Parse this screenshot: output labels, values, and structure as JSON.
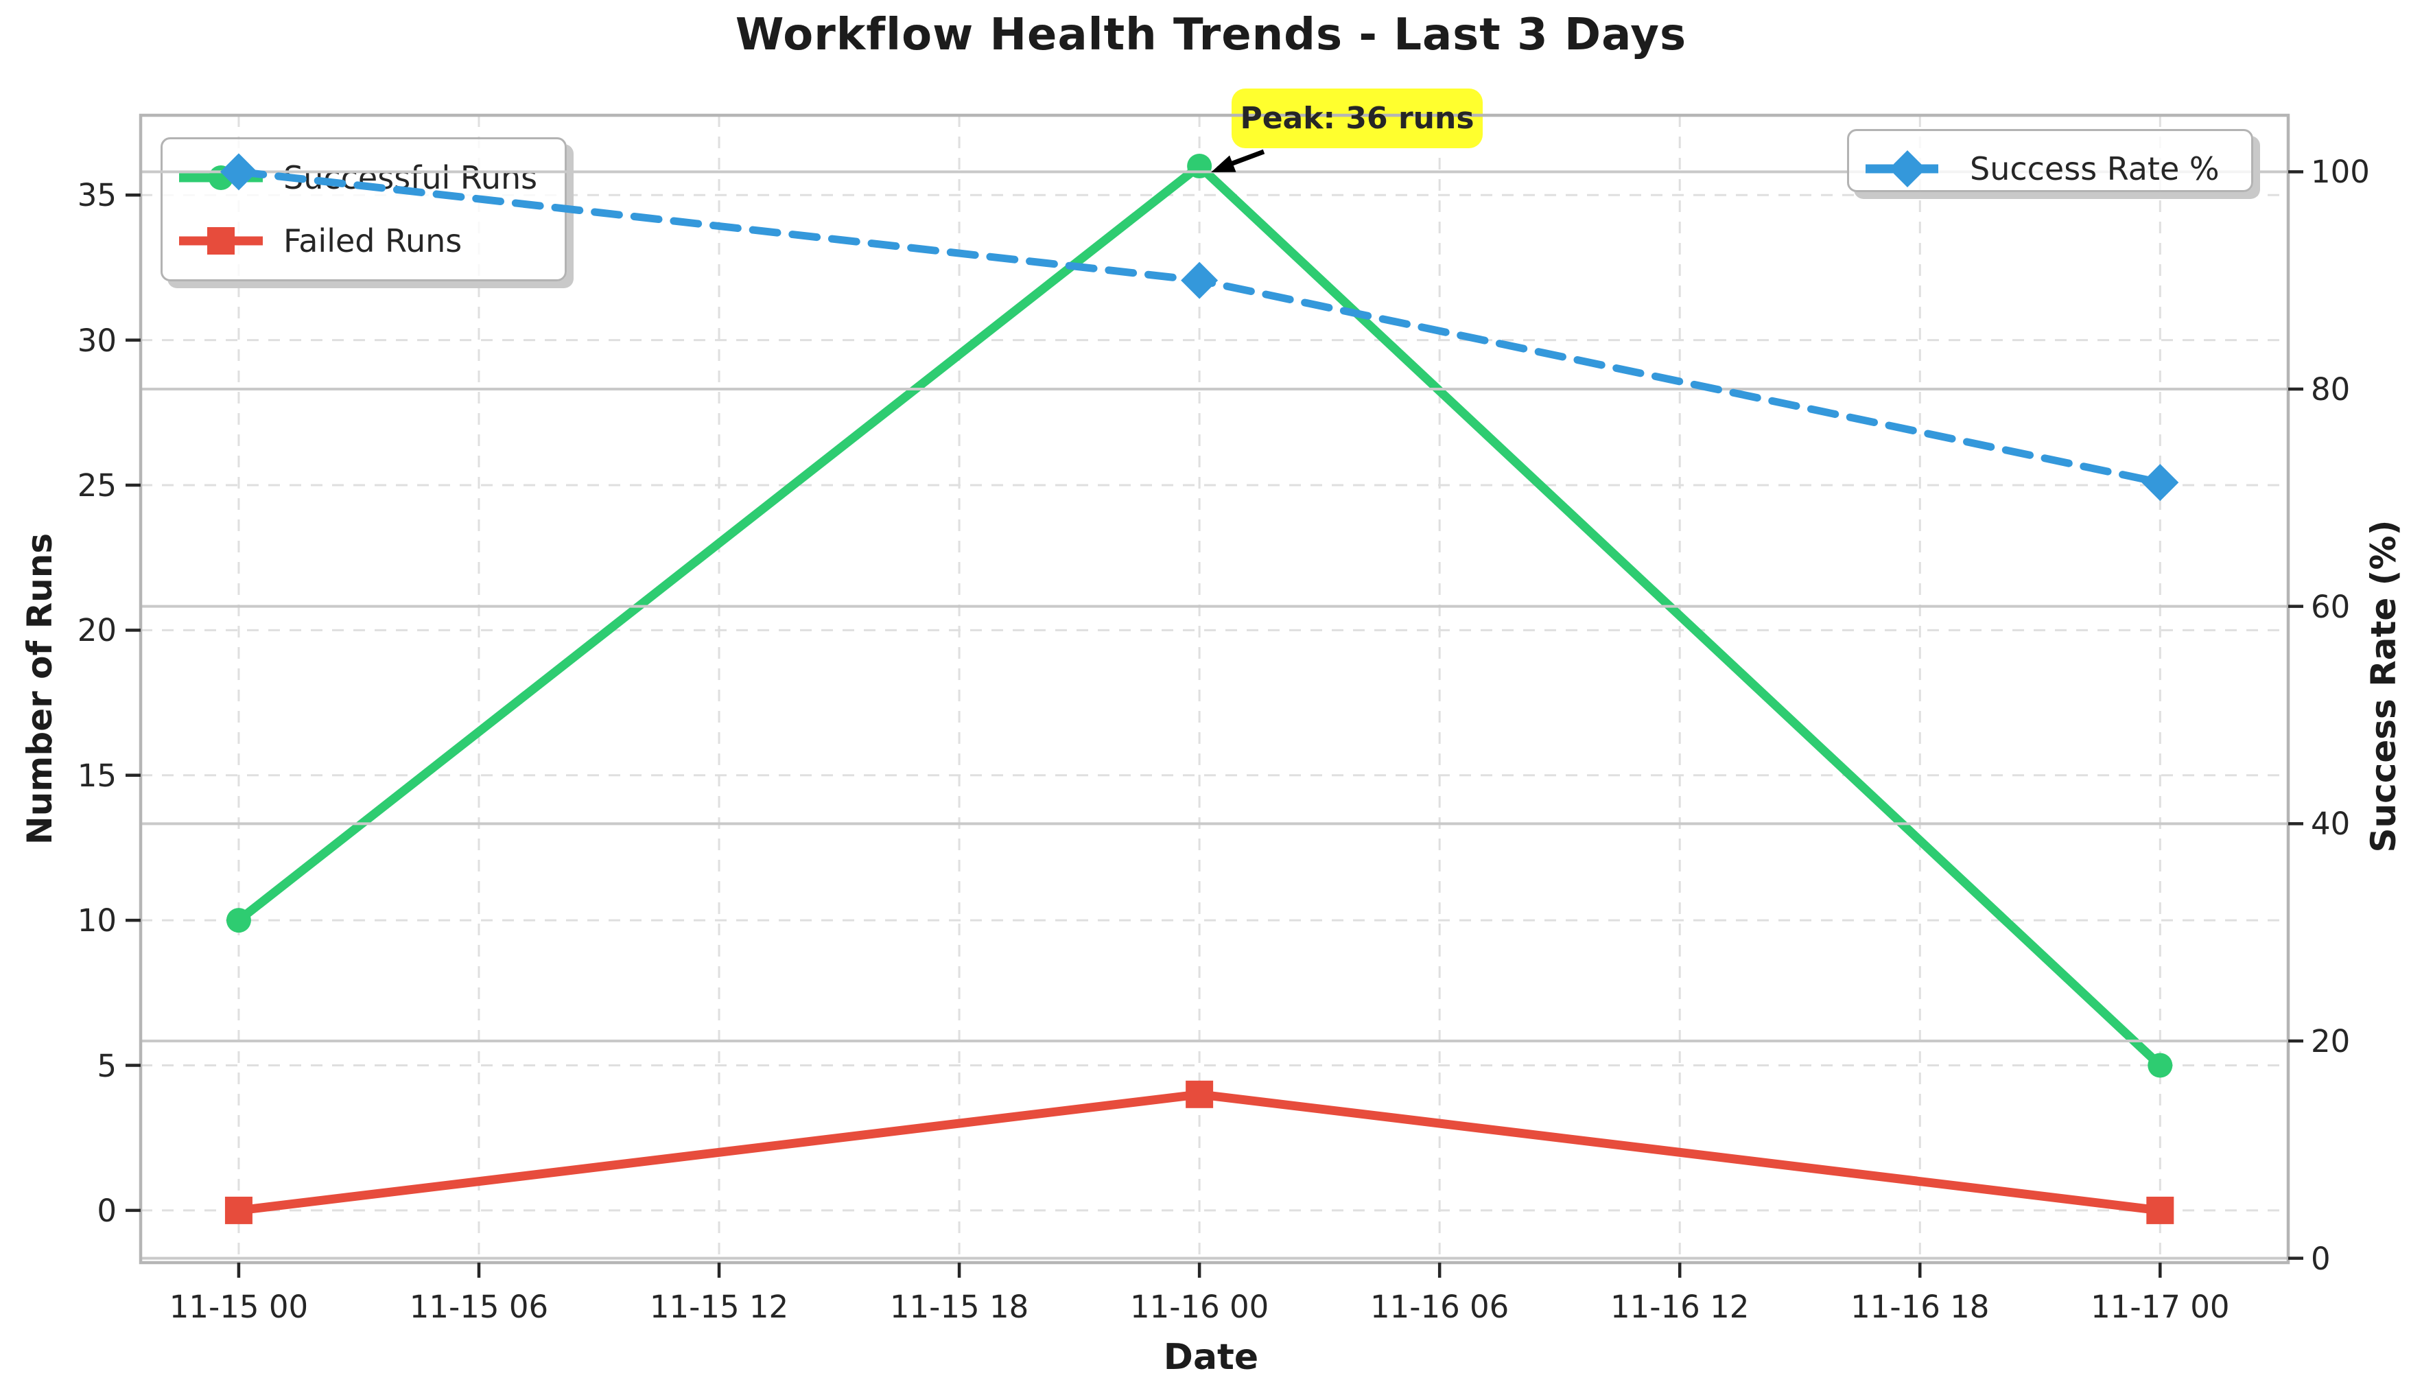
{
  "figure": {
    "title": "Workflow Health Trends - Last 3 Days"
  },
  "chart_data": {
    "type": "line",
    "title": "Workflow Health Trends - Last 3 Days",
    "xlabel": "Date",
    "ylabel_left": "Number of Runs",
    "ylabel_right": "Success Rate (%)",
    "x_tick_labels": [
      "11-15 00",
      "11-15 06",
      "11-15 12",
      "11-15 18",
      "11-16 00",
      "11-16 06",
      "11-16 12",
      "11-16 18",
      "11-17 00"
    ],
    "x_tick_hours": [
      0,
      6,
      12,
      18,
      24,
      30,
      36,
      42,
      48
    ],
    "x_data_hours": [
      0,
      24,
      48
    ],
    "x_data_labels": [
      "11-15 00",
      "11-16 00",
      "11-17 00"
    ],
    "left_axis": {
      "ticks": [
        0,
        5,
        10,
        15,
        20,
        25,
        30,
        35
      ],
      "min": -1.8,
      "max": 37.75
    },
    "right_axis": {
      "ticks": [
        0,
        20,
        40,
        60,
        80,
        100
      ],
      "min": -0.4,
      "max": 105.2
    },
    "xlim_hours": [
      -2.45,
      51.2
    ],
    "grid": {
      "dashed_on": true,
      "solid_on": true
    },
    "legend_positions": {
      "runs_legend": "upper left",
      "rate_legend": "upper right"
    },
    "series": [
      {
        "name": "Successful Runs",
        "axis": "left",
        "color": "#2ecc71",
        "marker": "circle",
        "line": "solid",
        "values": [
          10,
          36,
          5
        ]
      },
      {
        "name": "Failed Runs",
        "axis": "left",
        "color": "#e74c3c",
        "marker": "square",
        "line": "solid",
        "values": [
          0,
          4,
          0
        ]
      },
      {
        "name": "Success Rate %",
        "axis": "right",
        "color": "#3498db",
        "marker": "diamond",
        "line": "dashed",
        "values": [
          100,
          90,
          71.4
        ]
      }
    ],
    "annotation": {
      "text": "Peak: 36 runs",
      "target_value": 36,
      "target_x_hours": 24,
      "bg_color": "#ffff2e"
    },
    "colors": {
      "grid_dashed": "#dfdfdf",
      "grid_solid": "#c9c9c9",
      "spine": "#b5b5b5",
      "tick": "#262626",
      "text": "#1c1c1c",
      "arrow": "#000000"
    }
  }
}
